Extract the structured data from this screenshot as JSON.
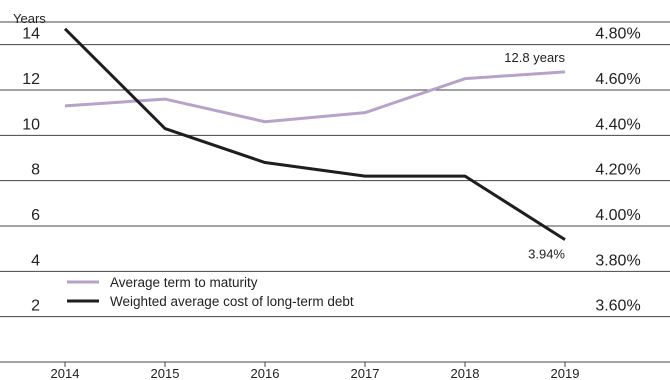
{
  "chart_data": {
    "type": "line",
    "y_left_label": "Years",
    "x": [
      "2014",
      "2015",
      "2016",
      "2017",
      "2018",
      "2019"
    ],
    "y_left": {
      "ticks": [
        "2",
        "4",
        "6",
        "8",
        "10",
        "12",
        "14"
      ],
      "range": [
        0,
        15
      ]
    },
    "y_right": {
      "ticks": [
        "3.60%",
        "3.80%",
        "4.00%",
        "4.20%",
        "4.40%",
        "4.60%",
        "4.80%"
      ],
      "range": [
        3.4,
        4.9
      ]
    },
    "series": [
      {
        "name": "Average term to maturity",
        "axis": "left",
        "color": "#b7a3c9",
        "values": [
          11.3,
          11.6,
          10.6,
          11.0,
          12.5,
          12.8
        ]
      },
      {
        "name": "Weighted average cost of long-term debt",
        "axis": "right",
        "color": "#1e1e1e",
        "values": [
          4.87,
          4.43,
          4.28,
          4.22,
          4.22,
          3.94
        ]
      }
    ],
    "annotations": [
      {
        "text": "12.8 years",
        "series": 0,
        "index": 5
      },
      {
        "text": "3.94%",
        "series": 1,
        "index": 5
      }
    ],
    "grid": "horizontal",
    "legend": "bottom-left"
  }
}
